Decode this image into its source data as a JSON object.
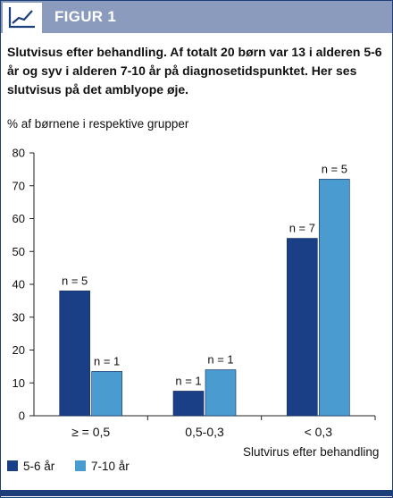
{
  "header": {
    "title": "FIGUR 1",
    "icon": "line-chart-icon"
  },
  "caption": "Slutvisus efter behandling. Af totalt 20 børn var 13 i alderen 5-6 år og syv i alderen 7-10 år på diagnosetidspunktet. Her ses slutvisus på det amblyope øje.",
  "colors": {
    "header_bg": "#8a9bbd",
    "series_dark": "#1a3f86",
    "series_light": "#4a9bd0",
    "rule": "#1c3f7a"
  },
  "chart_data": {
    "type": "bar",
    "ylabel": "% af børnene i respektive grupper",
    "xlabel": "Slutvirus efter behandling",
    "ylim": [
      0,
      80
    ],
    "yticks": [
      0,
      10,
      20,
      30,
      40,
      50,
      60,
      70,
      80
    ],
    "categories": [
      "≥ = 0,5",
      "0,5-0,3",
      "< 0,3"
    ],
    "series": [
      {
        "name": "5-6 år",
        "color": "#1a3f86",
        "values": [
          38,
          7.5,
          54
        ],
        "labels": [
          "n = 5",
          "n = 1",
          "n = 7"
        ]
      },
      {
        "name": "7-10 år",
        "color": "#4a9bd0",
        "values": [
          13.5,
          14,
          72
        ],
        "labels": [
          "n = 1",
          "n = 1",
          "n = 5"
        ]
      }
    ],
    "grid": false,
    "legend_position": "bottom-left"
  }
}
